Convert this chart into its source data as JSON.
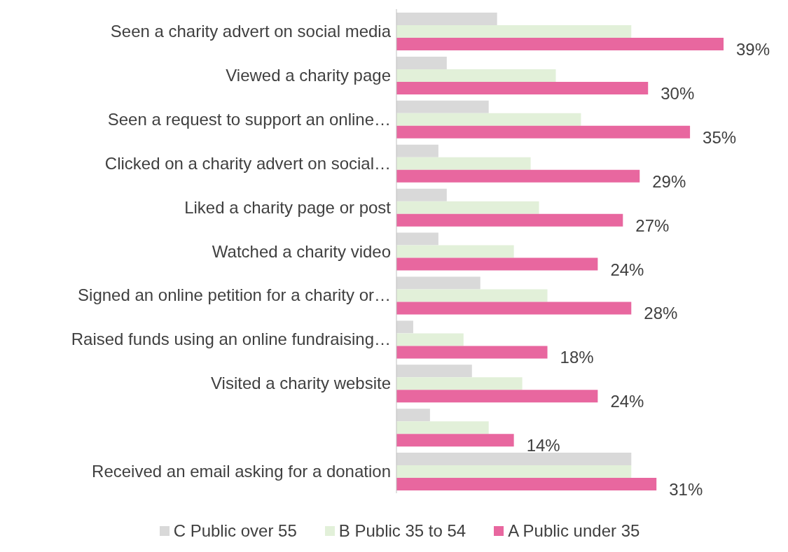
{
  "chart_data": {
    "type": "bar",
    "orientation": "horizontal",
    "legend": "bottom",
    "categories": [
      "Seen a charity advert on social media",
      "Viewed a charity page",
      "Seen a request to  support an online…",
      "Clicked on a charity advert on social…",
      "Liked a charity page or post",
      "Watched a charity video",
      "Signed an online petition for a charity or…",
      "Raised funds using an online fundraising…",
      "Visited a charity website",
      null,
      "Received an email asking for a donation"
    ],
    "series": [
      {
        "name": "C Public over 55",
        "color": "#d9d9d9",
        "values": [
          12,
          6,
          11,
          5,
          6,
          5,
          10,
          2,
          9,
          4,
          28
        ]
      },
      {
        "name": "B Public 35 to 54",
        "color": "#e2f0d9",
        "values": [
          28,
          19,
          22,
          16,
          17,
          14,
          18,
          8,
          15,
          11,
          28
        ]
      },
      {
        "name": "A Public under 35",
        "color": "#e8679f",
        "values": [
          39,
          30,
          35,
          29,
          27,
          24,
          28,
          18,
          24,
          14,
          31
        ],
        "value_labels": [
          "39%",
          "30%",
          "35%",
          "29%",
          "27%",
          "24%",
          "28%",
          "18%",
          "24%",
          "14%",
          "31%"
        ]
      }
    ]
  }
}
